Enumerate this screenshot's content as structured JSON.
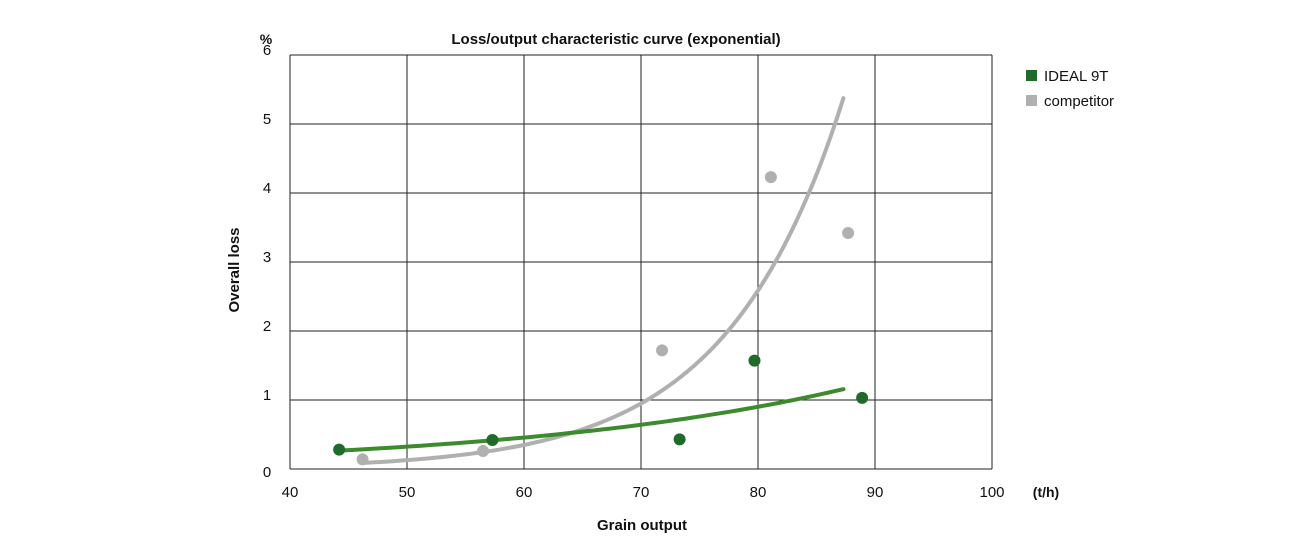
{
  "chart_data": {
    "type": "scatter",
    "title": "Loss/output characteristic curve (exponential)",
    "xlabel": "Grain output",
    "ylabel": "Overall loss",
    "x_unit": "(t/h)",
    "y_unit": "%",
    "xlim": [
      40,
      100
    ],
    "ylim": [
      0,
      6
    ],
    "x_ticks": [
      "40",
      "50",
      "60",
      "70",
      "80",
      "90",
      "100"
    ],
    "y_ticks": [
      "0",
      "1",
      "2",
      "3",
      "4",
      "5",
      "6"
    ],
    "grid": true,
    "legend_position": "top-right",
    "series": [
      {
        "name": "IDEAL 9T",
        "color": "#1e6b2a",
        "trend_color": "#3d8b2e",
        "points": [
          {
            "x": 44.2,
            "y": 0.28
          },
          {
            "x": 57.3,
            "y": 0.42
          },
          {
            "x": 73.3,
            "y": 0.43
          },
          {
            "x": 79.7,
            "y": 1.57
          },
          {
            "x": 88.9,
            "y": 1.03
          }
        ],
        "trend": {
          "type": "exponential",
          "x_range": [
            44.2,
            87.3
          ],
          "a": 0.0588,
          "b": 0.03413
        }
      },
      {
        "name": "competitor",
        "color": "#b0b0b0",
        "trend_color": "#b0b0b0",
        "points": [
          {
            "x": 46.2,
            "y": 0.14
          },
          {
            "x": 56.5,
            "y": 0.26
          },
          {
            "x": 71.8,
            "y": 1.72
          },
          {
            "x": 81.1,
            "y": 4.23
          },
          {
            "x": 87.7,
            "y": 3.42
          }
        ],
        "trend": {
          "type": "exponential",
          "x_range": [
            46.2,
            87.3
          ],
          "a": 0.000854,
          "b": 0.1002
        }
      }
    ]
  }
}
